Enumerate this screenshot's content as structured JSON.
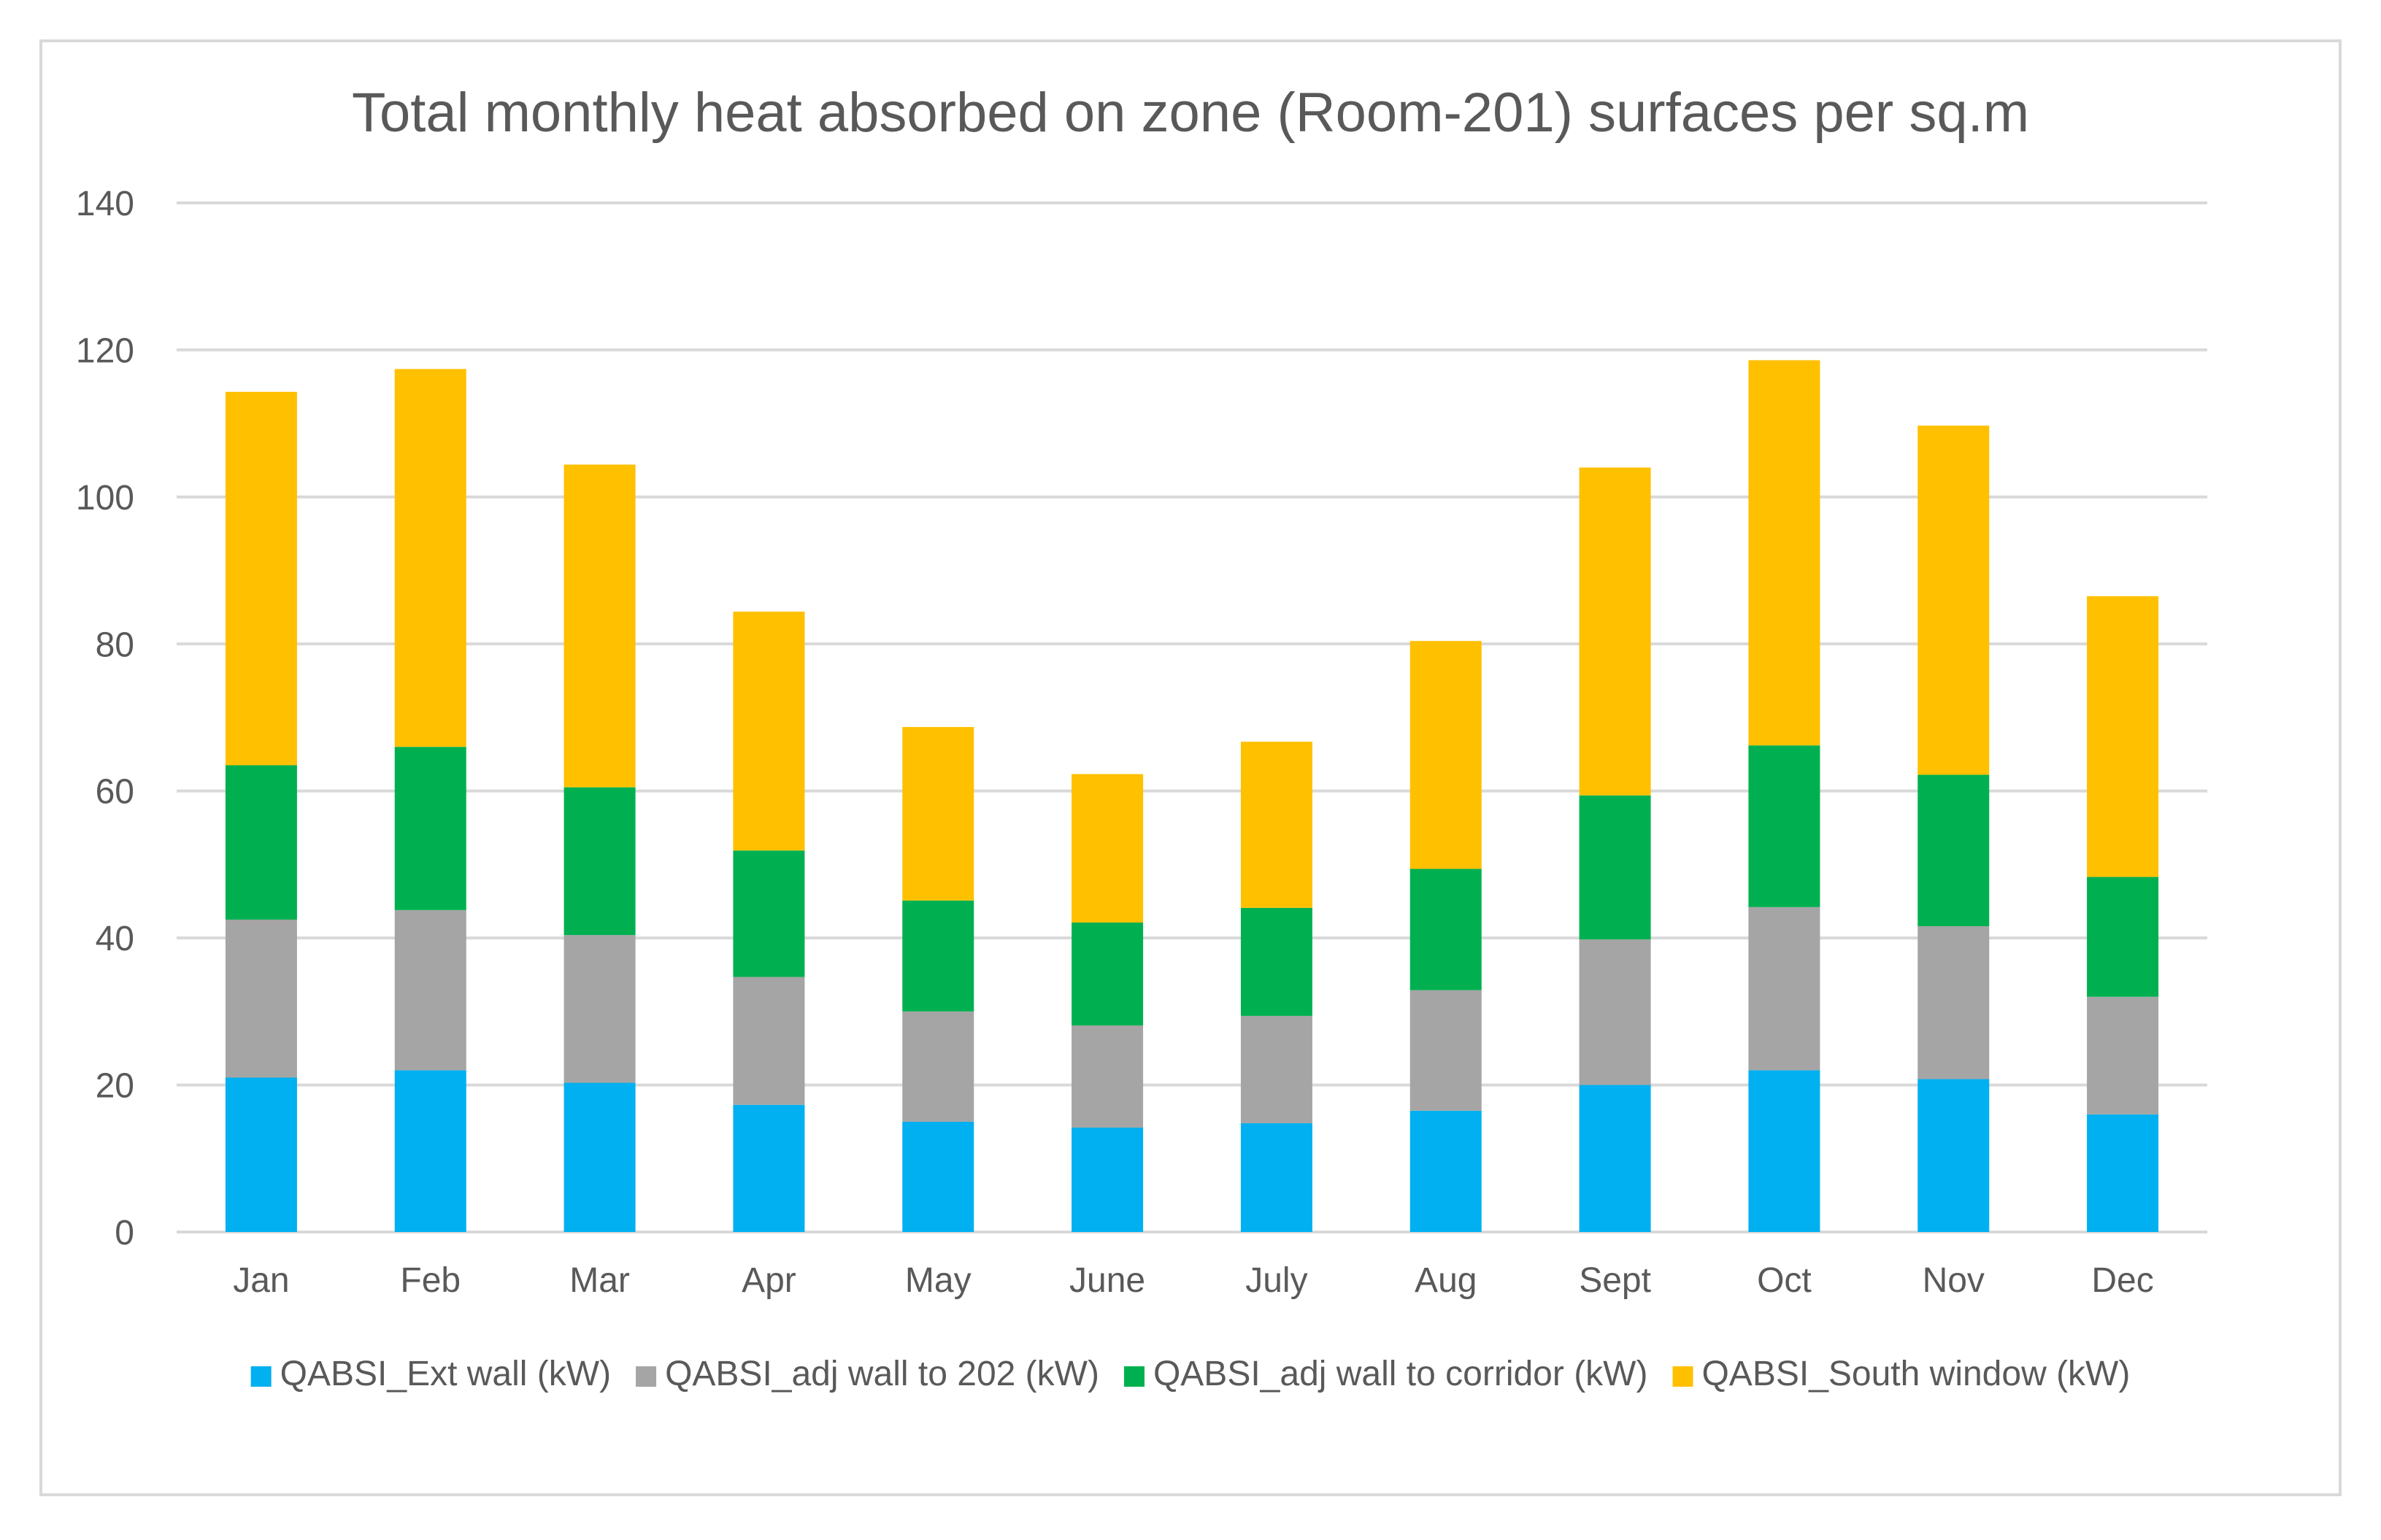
{
  "chart_data": {
    "type": "bar",
    "stacked": true,
    "title": "Total monthly heat absorbed on zone (Room-201)  surfaces per sq.m",
    "xlabel": "",
    "ylabel": "",
    "ylim": [
      0,
      140
    ],
    "yticks": [
      0,
      20,
      40,
      60,
      80,
      100,
      120,
      140
    ],
    "grid": true,
    "legend_position": "bottom",
    "categories": [
      "Jan",
      "Feb",
      "Mar",
      "Apr",
      "May",
      "June",
      "July",
      "Aug",
      "Sept",
      "Oct",
      "Nov",
      "Dec"
    ],
    "series": [
      {
        "name": "QABSI_Ext wall (kW)",
        "color": "#00b0f0",
        "values": [
          21,
          22,
          20.3,
          17.3,
          15,
          14.2,
          14.8,
          16.5,
          20,
          22,
          20.8,
          16
        ]
      },
      {
        "name": "QABSI_adj wall to 202 (kW)",
        "color": "#a5a5a5",
        "values": [
          21.5,
          21.8,
          20.1,
          17.4,
          15,
          13.9,
          14.6,
          16.4,
          19.8,
          22.2,
          20.8,
          16
        ]
      },
      {
        "name": "QABSI_adj wall to corridor (kW)",
        "color": "#00b050",
        "values": [
          21,
          22.2,
          20.1,
          17.2,
          15.1,
          14,
          14.7,
          16.5,
          19.6,
          22,
          20.6,
          16.3
        ]
      },
      {
        "name": "QABSI_South window (kW)",
        "color": "#ffc000",
        "values": [
          50.8,
          51.4,
          43.9,
          32.5,
          23.6,
          20.2,
          22.6,
          31,
          44.6,
          52.4,
          47.5,
          38.2
        ]
      }
    ]
  }
}
